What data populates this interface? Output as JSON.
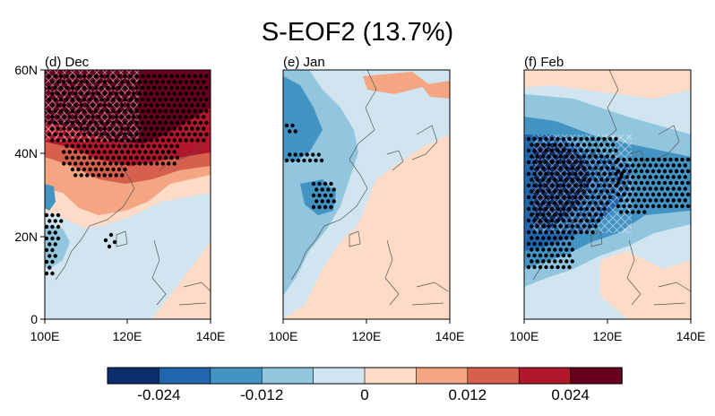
{
  "figure": {
    "title": "S-EOF2 (13.7%)"
  },
  "panels": [
    {
      "id": "dec",
      "label": "(d) Dec",
      "y_ticks": [
        "60N",
        "40N",
        "20N",
        "0"
      ],
      "x_ticks": [
        "100E",
        "120E",
        "140E"
      ]
    },
    {
      "id": "jan",
      "label": "(e) Jan",
      "y_ticks": [],
      "x_ticks": [
        "100E",
        "120E",
        "140E"
      ]
    },
    {
      "id": "feb",
      "label": "(f) Feb",
      "y_ticks": [],
      "x_ticks": [
        "100E",
        "120E",
        "140E"
      ]
    }
  ],
  "colorbar": {
    "colors": [
      "#0b2d6b",
      "#2166ac",
      "#4393c3",
      "#92c5de",
      "#d1e5f0",
      "#fddbc7",
      "#f4a582",
      "#d6604d",
      "#b2182b",
      "#67001f"
    ],
    "tick_labels": [
      "-0.024",
      "-0.012",
      "0",
      "0.012",
      "0.024"
    ]
  },
  "chart_data": {
    "type": "heatmap",
    "title": "S-EOF2 (13.7%)",
    "lon_range": [
      100,
      140
    ],
    "lat_range": [
      0,
      60
    ],
    "x_tick_labels": [
      "100E",
      "120E",
      "140E"
    ],
    "y_tick_labels": [
      "60N",
      "40N",
      "20N",
      "0"
    ],
    "panels": [
      "(d) Dec",
      "(e) Jan",
      "(f) Feb"
    ],
    "colorbar_range": [
      -0.03,
      0.03
    ],
    "colorbar_tick_values": [
      -0.024,
      -0.012,
      0,
      0.012,
      0.024
    ],
    "stippling": "significant regions (dots)",
    "hatching": "cross-hatched regions"
  }
}
